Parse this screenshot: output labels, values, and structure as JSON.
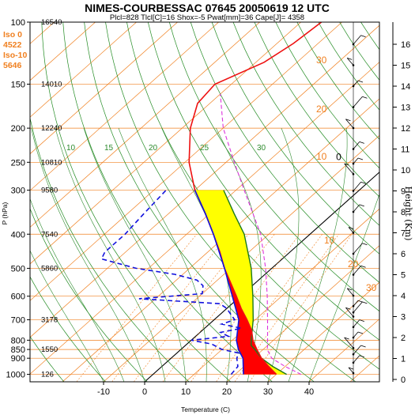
{
  "header": {
    "title": "NIMES-COURBESSAC 07645 20050619 12 UTC",
    "subtitle": "Plcl=828 Tlcl[C]=16 Shox=-5 Pwat[mm]=36 Cape[J]= 4358"
  },
  "left_info": [
    "Iso 0",
    "4522",
    "Iso-10",
    "5646"
  ],
  "chart_data": {
    "type": "skew-t",
    "x_axis": {
      "label": "Temperature (C)",
      "ticks": [
        "-10",
        "0",
        "10",
        "20",
        "30",
        "40"
      ],
      "tick_values": [
        -10,
        0,
        10,
        20,
        30,
        40
      ],
      "range": [
        -20,
        45
      ]
    },
    "y_axis": {
      "label": "P (hPa)",
      "scale": "log",
      "ticks": [
        "100",
        "150",
        "200",
        "250",
        "300",
        "400",
        "500",
        "600",
        "700",
        "800",
        "850",
        "900",
        "1000"
      ],
      "tick_values": [
        100,
        150,
        200,
        250,
        300,
        400,
        500,
        600,
        700,
        800,
        850,
        900,
        1000
      ],
      "range": [
        1050,
        100
      ]
    },
    "right_axis": {
      "label": "Height (Km)",
      "ticks": [
        "0",
        "1",
        "2",
        "3",
        "4",
        "5",
        "6",
        "7",
        "8",
        "9",
        "10",
        "11",
        "12",
        "13",
        "14",
        "15",
        "16"
      ],
      "tick_values": [
        0,
        1,
        2,
        3,
        4,
        5,
        6,
        7,
        8,
        9,
        10,
        11,
        12,
        13,
        14,
        15,
        16
      ]
    },
    "geopotential_heights": [
      {
        "p": 100,
        "value": "16540"
      },
      {
        "p": 150,
        "value": "14010"
      },
      {
        "p": 200,
        "value": "12240"
      },
      {
        "p": 250,
        "value": "10810"
      },
      {
        "p": 300,
        "value": "9580"
      },
      {
        "p": 400,
        "value": "7540"
      },
      {
        "p": 500,
        "value": "5860"
      },
      {
        "p": 700,
        "value": "3178"
      },
      {
        "p": 850,
        "value": "1550"
      },
      {
        "p": 1000,
        "value": "126"
      }
    ],
    "isotherm_labels": [
      {
        "p": 350,
        "t": 0,
        "text": "0"
      }
    ],
    "dry_adiabat_labels": [
      {
        "text": "30"
      },
      {
        "text": "20"
      },
      {
        "text": "10"
      },
      {
        "text": "10"
      },
      {
        "text": "20"
      },
      {
        "text": "30"
      }
    ],
    "mixing_ratio_labels": [
      {
        "text": "10"
      },
      {
        "text": "15"
      },
      {
        "text": "20"
      },
      {
        "text": "25"
      },
      {
        "text": "30"
      }
    ],
    "temperature_profile": [
      {
        "p": 1000,
        "t": 30.0
      },
      {
        "p": 950,
        "t": 26.0
      },
      {
        "p": 900,
        "t": 22.0
      },
      {
        "p": 850,
        "t": 18.5
      },
      {
        "p": 800,
        "t": 15.0
      },
      {
        "p": 750,
        "t": 12.0
      },
      {
        "p": 700,
        "t": 8.0
      },
      {
        "p": 650,
        "t": 3.5
      },
      {
        "p": 600,
        "t": -1.0
      },
      {
        "p": 550,
        "t": -6.0
      },
      {
        "p": 500,
        "t": -11.5
      },
      {
        "p": 450,
        "t": -17.0
      },
      {
        "p": 400,
        "t": -23.5
      },
      {
        "p": 350,
        "t": -31.0
      },
      {
        "p": 300,
        "t": -40.0
      },
      {
        "p": 250,
        "t": -49.0
      },
      {
        "p": 200,
        "t": -58.0
      },
      {
        "p": 170,
        "t": -63.0
      },
      {
        "p": 150,
        "t": -64.0
      },
      {
        "p": 130,
        "t": -58.0
      },
      {
        "p": 115,
        "t": -56.0
      },
      {
        "p": 100,
        "t": -55.0
      }
    ],
    "dewpoint_profile": [
      {
        "p": 1000,
        "t": 19.0
      },
      {
        "p": 950,
        "t": 18.5
      },
      {
        "p": 900,
        "t": 16.0
      },
      {
        "p": 870,
        "t": 15.0
      },
      {
        "p": 850,
        "t": 10.0
      },
      {
        "p": 820,
        "t": 6.0
      },
      {
        "p": 800,
        "t": 0.0
      },
      {
        "p": 780,
        "t": 8.0
      },
      {
        "p": 760,
        "t": 5.0
      },
      {
        "p": 740,
        "t": 9.0
      },
      {
        "p": 720,
        "t": 3.0
      },
      {
        "p": 700,
        "t": 5.0
      },
      {
        "p": 680,
        "t": 3.0
      },
      {
        "p": 650,
        "t": 0.0
      },
      {
        "p": 630,
        "t": -3.0
      },
      {
        "p": 610,
        "t": -24.0
      },
      {
        "p": 590,
        "t": -10.0
      },
      {
        "p": 560,
        "t": -12.0
      },
      {
        "p": 540,
        "t": -15.0
      },
      {
        "p": 520,
        "t": -22.0
      },
      {
        "p": 500,
        "t": -33.0
      },
      {
        "p": 470,
        "t": -44.0
      },
      {
        "p": 450,
        "t": -45.0
      },
      {
        "p": 400,
        "t": -45.0
      },
      {
        "p": 350,
        "t": -46.0
      },
      {
        "p": 300,
        "t": -47.0
      }
    ],
    "parcel_profile": [
      {
        "p": 1000,
        "t": 32.5
      },
      {
        "p": 950,
        "t": 27.0
      },
      {
        "p": 900,
        "t": 22.0
      },
      {
        "p": 850,
        "t": 18.0
      },
      {
        "p": 828,
        "t": 16.0
      },
      {
        "p": 800,
        "t": 14.6
      },
      {
        "p": 700,
        "t": 9.5
      },
      {
        "p": 600,
        "t": 3.0
      },
      {
        "p": 500,
        "t": -5.0
      },
      {
        "p": 400,
        "t": -16.0
      },
      {
        "p": 350,
        "t": -24.0
      },
      {
        "p": 300,
        "t": -33.0
      }
    ],
    "virtual_parcel_profile": [
      {
        "p": 1000,
        "t": 36.0
      },
      {
        "p": 950,
        "t": 30.0
      },
      {
        "p": 900,
        "t": 24.5
      },
      {
        "p": 850,
        "t": 21.0
      },
      {
        "p": 828,
        "t": 20.0
      },
      {
        "p": 700,
        "t": 13.0
      },
      {
        "p": 600,
        "t": 6.5
      },
      {
        "p": 500,
        "t": -1.5
      },
      {
        "p": 400,
        "t": -12.0
      },
      {
        "p": 300,
        "t": -28.0
      },
      {
        "p": 250,
        "t": -38.0
      },
      {
        "p": 200,
        "t": -50.0
      },
      {
        "p": 160,
        "t": -60.0
      }
    ],
    "wet_bulb_profile": [
      {
        "p": 1000,
        "t": 22.0
      },
      {
        "p": 900,
        "t": 17.5
      },
      {
        "p": 850,
        "t": 14.0
      },
      {
        "p": 800,
        "t": 11.0
      },
      {
        "p": 700,
        "t": 6.0
      },
      {
        "p": 600,
        "t": -2.0
      },
      {
        "p": 500,
        "t": -11.5
      },
      {
        "p": 400,
        "t": -23.5
      },
      {
        "p": 350,
        "t": -31.0
      },
      {
        "p": 300,
        "t": -40.0
      }
    ],
    "wind_height_levels_km": [
      0.3,
      0.8,
      1.2,
      1.5,
      2.0,
      2.5,
      3.0,
      3.2,
      3.5,
      4.0,
      5.0,
      6.0,
      7.0,
      8.0,
      9.0,
      9.8,
      10.3,
      11.0,
      12.0,
      13.0,
      14.0,
      15.0,
      16.0
    ],
    "colors": {
      "temperature": "#ee1111",
      "dewpoint": "#1111dd",
      "cape_fill": "#ff0000",
      "surplus_fill": "#ffff00",
      "isotherm": "#f08020",
      "dry_adiabat": "#228b22",
      "moist_adiabat": "#2e8b2e",
      "mixing_ratio": "#f08020",
      "virtual_parcel": "#dd33dd"
    }
  }
}
